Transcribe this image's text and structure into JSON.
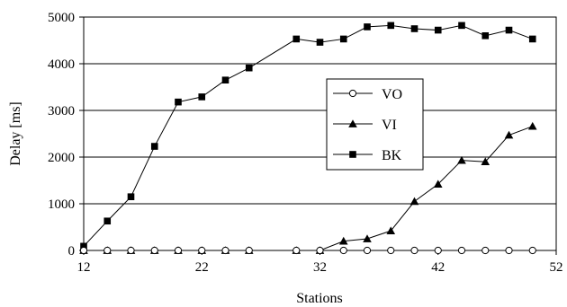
{
  "chart_data": {
    "type": "line",
    "xlabel": "Stations",
    "ylabel": "Delay [ms]",
    "xlim": [
      12,
      52
    ],
    "ylim": [
      0,
      5000
    ],
    "xticks": [
      12,
      22,
      32,
      42,
      52
    ],
    "yticks": [
      0,
      1000,
      2000,
      3000,
      4000,
      5000
    ],
    "grid": "horizontal",
    "legend_position": "center-right",
    "x": [
      12,
      14,
      16,
      18,
      20,
      22,
      24,
      26,
      30,
      32,
      34,
      36,
      38,
      40,
      42,
      44,
      46,
      48,
      50
    ],
    "series": [
      {
        "name": "VO",
        "marker": "open-circle",
        "values": [
          0,
          0,
          0,
          0,
          0,
          0,
          0,
          0,
          0,
          0,
          0,
          0,
          0,
          0,
          0,
          0,
          0,
          0,
          0
        ]
      },
      {
        "name": "VI",
        "marker": "filled-triangle",
        "values": [
          0,
          0,
          0,
          0,
          0,
          0,
          0,
          0,
          0,
          0,
          200,
          250,
          420,
          1050,
          1420,
          1930,
          1900,
          2470,
          2660
        ]
      },
      {
        "name": "BK",
        "marker": "filled-square",
        "values": [
          90,
          630,
          1150,
          2230,
          3180,
          3290,
          3650,
          3910,
          4530,
          4460,
          4530,
          4790,
          4820,
          4750,
          4720,
          4820,
          4600,
          4720,
          4530
        ]
      }
    ]
  }
}
